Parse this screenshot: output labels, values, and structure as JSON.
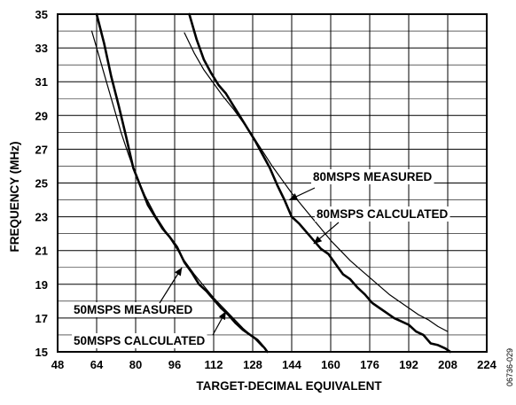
{
  "chart_data": {
    "type": "line",
    "xlabel": "TARGET-DECIMAL EQUIVALENT",
    "ylabel": "FREQUENCY (MHz)",
    "xlim": [
      48,
      224
    ],
    "ylim": [
      15,
      35
    ],
    "xticks": [
      "48",
      "64",
      "80",
      "96",
      "112",
      "128",
      "144",
      "160",
      "176",
      "192",
      "208",
      "224"
    ],
    "yticks": [
      "15",
      "17",
      "19",
      "21",
      "23",
      "25",
      "27",
      "29",
      "31",
      "33",
      "35"
    ],
    "grid": true,
    "series": [
      {
        "name": "50MSPS MEASURED",
        "style": "thick",
        "x": [
          64,
          67,
          70,
          73,
          76,
          79,
          82,
          85,
          88,
          91,
          94,
          97,
          100,
          103,
          106,
          109,
          112,
          115,
          118,
          121,
          124,
          127,
          130,
          133,
          134
        ],
        "y": [
          35,
          33.3,
          31.3,
          29.6,
          27.8,
          25.9,
          24.8,
          23.7,
          23.0,
          22.3,
          21.8,
          21.2,
          20.3,
          19.7,
          19.0,
          18.6,
          18.1,
          17.6,
          17.2,
          16.7,
          16.3,
          16.0,
          15.7,
          15.2,
          15.0
        ]
      },
      {
        "name": "50MSPS CALCULATED",
        "style": "thin",
        "x": [
          62,
          65,
          68,
          71,
          74,
          77,
          80,
          84,
          88,
          92,
          96,
          100,
          104,
          108,
          112,
          116,
          120,
          124,
          128,
          132
        ],
        "y": [
          34.0,
          32.5,
          31.0,
          29.5,
          28.0,
          26.7,
          25.5,
          24.2,
          23.1,
          22.2,
          21.3,
          20.4,
          19.6,
          18.9,
          18.2,
          17.6,
          17.0,
          16.4,
          15.9,
          15.3
        ]
      },
      {
        "name": "80MSPS MEASURED",
        "style": "thick",
        "x": [
          102,
          105,
          108,
          111,
          114,
          117,
          120,
          123,
          126,
          129,
          132,
          135,
          138,
          141,
          144,
          147,
          150,
          153,
          156,
          159,
          162,
          165,
          168,
          171,
          174,
          177,
          180,
          183,
          186,
          189,
          192,
          195,
          198,
          201,
          204,
          207,
          209
        ],
        "y": [
          35,
          33.5,
          32.3,
          31.5,
          30.8,
          30.3,
          29.6,
          28.9,
          28.2,
          27.5,
          26.7,
          25.9,
          24.9,
          24.0,
          23.0,
          22.6,
          22.1,
          21.6,
          21.1,
          20.8,
          20.2,
          19.6,
          19.3,
          18.8,
          18.4,
          17.9,
          17.6,
          17.3,
          17.0,
          16.8,
          16.6,
          16.2,
          16.0,
          15.5,
          15.4,
          15.2,
          15.0
        ]
      },
      {
        "name": "80MSPS CALCULATED",
        "style": "thin",
        "x": [
          100,
          104,
          108,
          112,
          116,
          120,
          124,
          128,
          132,
          136,
          140,
          144,
          148,
          152,
          156,
          160,
          164,
          168,
          172,
          176,
          180,
          184,
          188,
          192,
          196,
          200,
          204,
          208
        ],
        "y": [
          33.9,
          32.7,
          31.7,
          30.9,
          30.1,
          29.4,
          28.6,
          27.8,
          26.9,
          26.0,
          25.2,
          24.4,
          23.7,
          23.0,
          22.3,
          21.6,
          21.0,
          20.4,
          19.9,
          19.4,
          18.9,
          18.4,
          18.0,
          17.6,
          17.2,
          16.9,
          16.5,
          16.2
        ]
      }
    ],
    "annotations": [
      {
        "text": "80MSPS MEASURED",
        "arrow_to": [
          143,
          24.0
        ]
      },
      {
        "text": "80MSPS CALCULATED",
        "arrow_to": [
          153,
          21.4
        ]
      },
      {
        "text": "50MSPS  MEASURED",
        "arrow_to": [
          99,
          20.0
        ]
      },
      {
        "text": "50MSPS CALCULATED",
        "arrow_to": [
          117,
          17.4
        ]
      }
    ],
    "figure_id": "06736-029"
  }
}
